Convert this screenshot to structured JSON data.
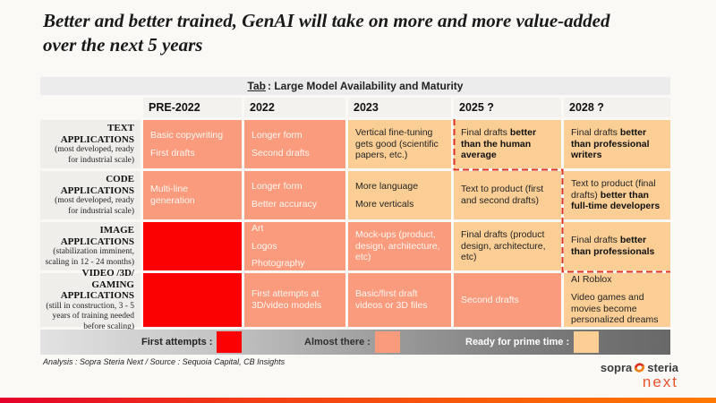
{
  "slide": {
    "title_line1": "Better and better trained, GenAI will take on more and more value-added",
    "title_line2": "over the next 5 years"
  },
  "table": {
    "header_label": "Tab",
    "header_rest": ": Large Model Availability and Maturity",
    "columns": [
      "PRE-2022",
      "2022",
      "2023",
      "2025 ?",
      "2028 ?"
    ],
    "rows": [
      {
        "key": "text",
        "name": "TEXT APPLICATIONS",
        "note": "(most developed, ready for industrial scale)",
        "cells": [
          {
            "tone": "salmon",
            "lines": [
              [
                {
                  "t": "Basic copywriting"
                }
              ],
              [
                {
                  "t": "First drafts"
                }
              ]
            ]
          },
          {
            "tone": "salmon",
            "lines": [
              [
                {
                  "t": "Longer form"
                }
              ],
              [
                {
                  "t": "Second drafts"
                }
              ]
            ]
          },
          {
            "tone": "amber",
            "lines": [
              [
                {
                  "t": "Vertical fine-tuning gets good (scientific papers, etc.)"
                }
              ]
            ]
          },
          {
            "tone": "amber",
            "lines": [
              [
                {
                  "t": "Final drafts "
                },
                {
                  "t": "better than the human average",
                  "b": true
                }
              ]
            ]
          },
          {
            "tone": "amber",
            "lines": [
              [
                {
                  "t": "Final drafts "
                },
                {
                  "t": "better than professional writers",
                  "b": true
                }
              ]
            ]
          }
        ]
      },
      {
        "key": "code",
        "name": "CODE APPLICATIONS",
        "note": "(most developed, ready for industrial scale)",
        "cells": [
          {
            "tone": "salmon",
            "lines": [
              [
                {
                  "t": "Multi-line generation"
                }
              ]
            ]
          },
          {
            "tone": "salmon",
            "lines": [
              [
                {
                  "t": "Longer form"
                }
              ],
              [
                {
                  "t": "Better accuracy"
                }
              ]
            ]
          },
          {
            "tone": "amber",
            "lines": [
              [
                {
                  "t": "More language"
                }
              ],
              [
                {
                  "t": "More verticals"
                }
              ]
            ]
          },
          {
            "tone": "amber",
            "lines": [
              [
                {
                  "t": "Text to product (first and second drafts)"
                }
              ]
            ]
          },
          {
            "tone": "amber",
            "lines": [
              [
                {
                  "t": "Text to product (final drafts) "
                },
                {
                  "t": "better than full-time developers",
                  "b": true
                }
              ]
            ]
          }
        ]
      },
      {
        "key": "image",
        "name": "IMAGE APPLICATIONS",
        "note": "(stabilization imminent, scaling in 12 - 24 months)",
        "cells": [
          {
            "tone": "red",
            "lines": []
          },
          {
            "tone": "salmon",
            "lines": [
              [
                {
                  "t": "Art"
                }
              ],
              [
                {
                  "t": "Logos"
                }
              ],
              [
                {
                  "t": "Photography"
                }
              ]
            ]
          },
          {
            "tone": "salmon",
            "lines": [
              [
                {
                  "t": "Mock-ups (product, design, architecture, etc)"
                }
              ]
            ]
          },
          {
            "tone": "amber",
            "lines": [
              [
                {
                  "t": "Final drafts (product design, architecture, etc)"
                }
              ]
            ]
          },
          {
            "tone": "amber",
            "lines": [
              [
                {
                  "t": "Final drafts "
                },
                {
                  "t": "better than professionals",
                  "b": true
                }
              ]
            ]
          }
        ]
      },
      {
        "key": "video",
        "name": "VIDEO /3D/ GAMING APPLICATIONS",
        "note": "(still in construction, 3 - 5 years of training needed before scaling)",
        "cells": [
          {
            "tone": "red",
            "lines": []
          },
          {
            "tone": "salmon",
            "lines": [
              [
                {
                  "t": "First attempts at 3D/video models"
                }
              ]
            ]
          },
          {
            "tone": "salmon",
            "lines": [
              [
                {
                  "t": "Basic/first draft videos or 3D files"
                }
              ]
            ]
          },
          {
            "tone": "salmon",
            "lines": [
              [
                {
                  "t": "Second drafts"
                }
              ]
            ]
          },
          {
            "tone": "amber",
            "lines": [
              [
                {
                  "t": "AI Roblox"
                }
              ],
              [
                {
                  "t": "Video games and movies become personalized dreams"
                }
              ]
            ]
          }
        ]
      }
    ]
  },
  "legend": {
    "items": [
      {
        "label": "First attempts :",
        "color": "#FB0100"
      },
      {
        "label": "Almost there :",
        "color": "#F99B7C"
      },
      {
        "label": "Ready for prime time :",
        "color": "#FBCE95"
      }
    ]
  },
  "footer": "Analysis : Sopra Steria Next / Source : Sequoia Capital, CB Insights",
  "logo": {
    "part1": "sopra",
    "part2": "steria",
    "sub": "next"
  },
  "colors": {
    "first_attempts": "#FB0100",
    "almost_there": "#F99B7C",
    "ready_prime_time": "#FBCE95",
    "frontier_dashed": "#E0301E",
    "bottom_bar_left": "#E4002B",
    "bottom_bar_right": "#FF7900"
  }
}
